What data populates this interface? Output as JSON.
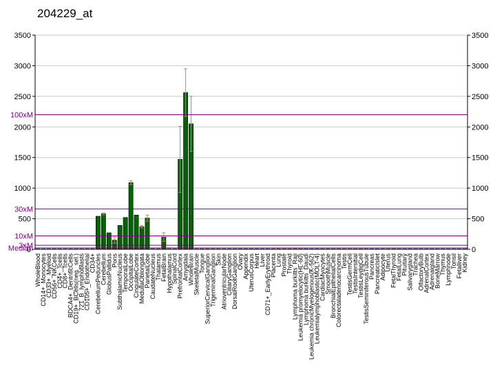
{
  "chart_data": {
    "type": "bar",
    "title": "204229_at",
    "ylim": [
      0,
      3500
    ],
    "yticks": [
      0,
      500,
      1000,
      1500,
      2000,
      2500,
      3000,
      3500
    ],
    "grid": true,
    "colors": {
      "bar": "#006400",
      "bar_low": "#7f7f7f",
      "error": "#c0825a",
      "ref_line": "#800080",
      "grid": "#c8c8c8",
      "baseline_bar": "#5f9ea0"
    },
    "reference_lines": [
      {
        "label": "100xM",
        "value": 2200
      },
      {
        "label": "30xM",
        "value": 660
      },
      {
        "label": "10xM",
        "value": 220
      },
      {
        "label": "3xM",
        "value": 66
      },
      {
        "label": "Median",
        "value": 22
      }
    ],
    "categories": [
      "WholeBlood",
      "CD14+_Monocytes",
      "CD33+_Myeloid",
      "CD56+_NKCells",
      "CD4+_Tcells",
      "CD8+_Tcells",
      "BDCA4+_DentriticCells",
      "CD19+_BCells(neg._sel.)",
      "721_B_lymphoblasts",
      "CD105+_Endothelial",
      "CD34+",
      "CerebellumPeduncles",
      "Cerebellum",
      "GlobusPallidus",
      "Pons",
      "SubthalamicNucleus",
      "TemporalLobe",
      "OccipitalLobe",
      "CingulateCortex",
      "MedullaOblongata",
      "ParietalLobe",
      "CaudateNucleus",
      "Thalamus",
      "FetalBrain",
      "Hypothalamus",
      "SpinalCord",
      "PrefrontalCortex",
      "Amygdala",
      "WholeBrain",
      "SkeletalMuscle",
      "Tongue",
      "SuperiorCervicalGanglion",
      "TrigeminalGanglion",
      "Skin",
      "AtrioventricularNode",
      "CiliaryGanglion",
      "DorsalRootGanglion",
      "Ovary",
      "Appendix",
      "UterusCorpus",
      "Heart",
      "Liver",
      "CD71+_EarlyErythroid",
      "Placenta",
      "Lung",
      "Prostate",
      "Thyroid",
      "Lymphoma burkitts_Raji",
      "Leukemia promyelocytic(HL-60)",
      "Lymphoma burkitts_Daudi",
      "Leukemia chronicMyelogenous(K-562)",
      "Leukemialymphoblastic(MOLT-4)",
      "CardiacMyocytes",
      "SmoothMuscle",
      "BronchialEpithelialCells",
      "Colorectaladenocarcinoma",
      "Testis",
      "TestisGermCell",
      "TestisIntersitial",
      "TestisLeydigCell",
      "TestisSeminiferousTubule",
      "Pancreas",
      "PancreaticIslet",
      "Adipocyte",
      "Uterus",
      "FetalThyroid",
      "FetalLung",
      "Pituitary",
      "Salivarygland",
      "Trachea",
      "OlfactoryBulb",
      "AdrenalCortex",
      "Adrenalgland",
      "BoneMarrow",
      "Thymus",
      "Lymphnode",
      "Tonsil",
      "Fetalliver",
      "Kidney"
    ],
    "values": [
      8,
      8,
      10,
      8,
      8,
      8,
      8,
      8,
      8,
      8,
      15,
      540,
      580,
      270,
      150,
      390,
      520,
      1090,
      560,
      370,
      510,
      15,
      15,
      200,
      30,
      20,
      1470,
      2560,
      2050,
      15,
      15,
      20,
      15,
      10,
      10,
      10,
      10,
      15,
      10,
      10,
      10,
      10,
      10,
      10,
      15,
      20,
      10,
      20,
      25,
      15,
      10,
      10,
      10,
      15,
      10,
      15,
      10,
      10,
      10,
      15,
      10,
      10,
      10,
      10,
      10,
      15,
      10,
      10,
      10,
      10,
      10,
      10,
      10,
      10,
      10,
      10,
      10,
      10,
      10
    ],
    "errors": [
      0,
      0,
      0,
      0,
      0,
      0,
      0,
      0,
      0,
      0,
      0,
      0,
      15,
      0,
      50,
      0,
      0,
      30,
      0,
      20,
      50,
      0,
      0,
      70,
      0,
      0,
      540,
      390,
      450,
      0,
      0,
      0,
      0,
      0,
      0,
      0,
      0,
      0,
      0,
      0,
      0,
      0,
      0,
      0,
      0,
      0,
      0,
      0,
      0,
      0,
      0,
      0,
      0,
      0,
      0,
      0,
      0,
      0,
      0,
      0,
      0,
      0,
      0,
      0,
      0,
      0,
      0,
      0,
      0,
      0,
      0,
      0,
      0,
      0,
      0,
      0,
      0,
      0,
      0
    ]
  }
}
